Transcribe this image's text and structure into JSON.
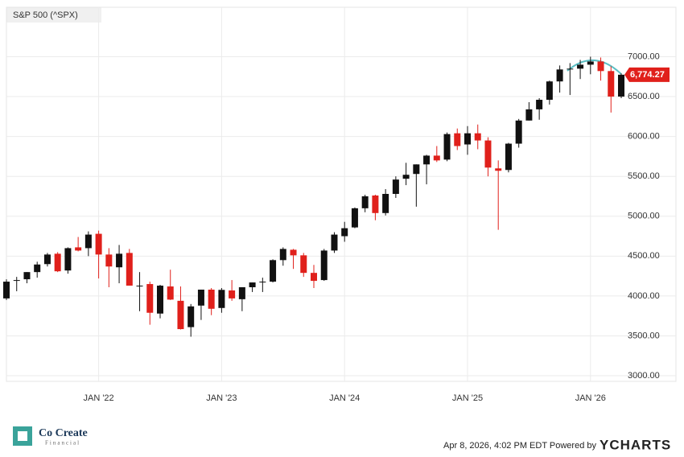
{
  "chart_data": {
    "type": "candlestick",
    "title": "S&P 500 (^SPX)",
    "x": [
      "2021-04",
      "2021-05",
      "2021-06",
      "2021-07",
      "2021-08",
      "2021-09",
      "2021-10",
      "2021-11",
      "2021-12",
      "2022-01",
      "2022-02",
      "2022-03",
      "2022-04",
      "2022-05",
      "2022-06",
      "2022-07",
      "2022-08",
      "2022-09",
      "2022-10",
      "2022-11",
      "2022-12",
      "2023-01",
      "2023-02",
      "2023-03",
      "2023-04",
      "2023-05",
      "2023-06",
      "2023-07",
      "2023-08",
      "2023-09",
      "2023-10",
      "2023-11",
      "2023-12",
      "2024-01",
      "2024-02",
      "2024-03",
      "2024-04",
      "2024-05",
      "2024-06",
      "2024-07",
      "2024-08",
      "2024-09",
      "2024-10",
      "2024-11",
      "2024-12",
      "2025-01",
      "2025-02",
      "2025-03",
      "2025-04",
      "2025-05",
      "2025-06",
      "2025-07",
      "2025-08",
      "2025-09",
      "2025-10",
      "2025-11",
      "2025-12",
      "2026-01",
      "2026-02",
      "2026-03",
      "2026-04"
    ],
    "open": [
      3970,
      4190,
      4210,
      4300,
      4400,
      4530,
      4320,
      4610,
      4600,
      4780,
      4520,
      4360,
      4540,
      4130,
      4150,
      3780,
      4120,
      3940,
      3610,
      3880,
      4080,
      3850,
      4070,
      3960,
      4110,
      4170,
      4180,
      4450,
      4580,
      4510,
      4290,
      4200,
      4570,
      4750,
      4860,
      5100,
      5260,
      5040,
      5280,
      5470,
      5530,
      5650,
      5760,
      5710,
      6040,
      5900,
      6040,
      5950,
      5600,
      5580,
      5910,
      6200,
      6340,
      6460,
      6690,
      6840,
      6850,
      6900,
      6940,
      6820,
      6500
    ],
    "high": [
      4210,
      4240,
      4300,
      4430,
      4540,
      4550,
      4610,
      4740,
      4810,
      4820,
      4600,
      4640,
      4590,
      4300,
      4180,
      4140,
      4330,
      4120,
      3900,
      4080,
      4100,
      4100,
      4200,
      4110,
      4170,
      4230,
      4460,
      4610,
      4590,
      4540,
      4390,
      4590,
      4800,
      4930,
      5110,
      5270,
      5270,
      5340,
      5500,
      5670,
      5650,
      5770,
      5880,
      6050,
      6100,
      6130,
      6150,
      5990,
      5700,
      5920,
      6220,
      6430,
      6480,
      6700,
      6890,
      6920,
      6960,
      7000,
      6990,
      6880,
      6790
    ],
    "low": [
      3950,
      4060,
      4160,
      4230,
      4370,
      4300,
      4280,
      4560,
      4500,
      4220,
      4110,
      4160,
      4130,
      3810,
      3640,
      3720,
      3950,
      3580,
      3490,
      3700,
      3760,
      3790,
      3940,
      3810,
      4050,
      4050,
      4170,
      4380,
      4340,
      4240,
      4100,
      4190,
      4540,
      4680,
      4850,
      5050,
      4950,
      5010,
      5230,
      5390,
      5120,
      5400,
      5680,
      5690,
      5830,
      5770,
      5840,
      5500,
      4830,
      5550,
      5860,
      6200,
      6210,
      6400,
      6550,
      6520,
      6720,
      6780,
      6700,
      6300,
      6480
    ],
    "close": [
      4180,
      4200,
      4300,
      4395,
      4520,
      4310,
      4600,
      4570,
      4770,
      4520,
      4370,
      4530,
      4130,
      4130,
      3790,
      4130,
      3955,
      3585,
      3870,
      4080,
      3840,
      4077,
      3970,
      4110,
      4170,
      4180,
      4450,
      4590,
      4510,
      4290,
      4190,
      4570,
      4770,
      4850,
      5100,
      5250,
      5040,
      5280,
      5460,
      5520,
      5650,
      5760,
      5700,
      6030,
      5880,
      6040,
      5950,
      5610,
      5570,
      5910,
      6200,
      6340,
      6460,
      6690,
      6840,
      6850,
      6900,
      6940,
      6820,
      6500,
      6774.27
    ],
    "up_color": "#111111",
    "down_color": "#e0201b",
    "last_price": {
      "value": 6774.27,
      "label": "6,774.27"
    },
    "xlim": [
      "2021-04",
      "2026-04"
    ],
    "xticks": [
      {
        "value": "2022-01",
        "label": "JAN '22"
      },
      {
        "value": "2023-01",
        "label": "JAN '23"
      },
      {
        "value": "2024-01",
        "label": "JAN '24"
      },
      {
        "value": "2025-01",
        "label": "JAN '25"
      },
      {
        "value": "2026-01",
        "label": "JAN '26"
      }
    ],
    "ylim": [
      2930,
      7620
    ],
    "yticks": [
      {
        "value": 3000,
        "label": "3000.00"
      },
      {
        "value": 3500,
        "label": "3500.00"
      },
      {
        "value": 4000,
        "label": "4000.00"
      },
      {
        "value": 4500,
        "label": "4500.00"
      },
      {
        "value": 5000,
        "label": "5000.00"
      },
      {
        "value": 5500,
        "label": "5500.00"
      },
      {
        "value": 6000,
        "label": "6000.00"
      },
      {
        "value": 6500,
        "label": "6500.00"
      },
      {
        "value": 7000,
        "label": "7000.00"
      }
    ],
    "grid": true,
    "footer": "Apr 8, 2026, 4:02 PM EDT Powered by",
    "brand": "YCHARTS",
    "logo_name": "Co Create",
    "logo_sub": "Financial"
  }
}
